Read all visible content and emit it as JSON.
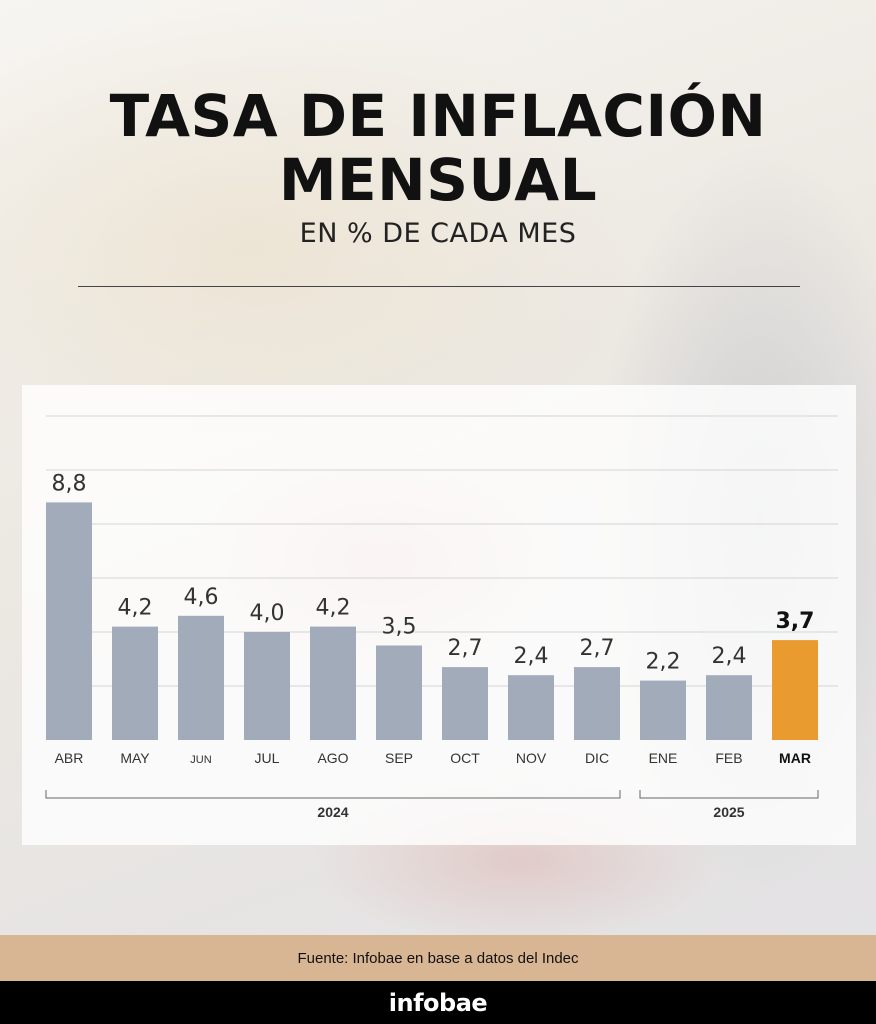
{
  "header": {
    "title_line1": "TASA DE INFLACIÓN",
    "title_line2": "MENSUAL",
    "subtitle": "EN % DE CADA MES"
  },
  "chart_data": {
    "type": "bar",
    "title": "TASA DE INFLACIÓN MENSUAL",
    "subtitle": "EN % DE CADA MES",
    "categories": [
      "ABR",
      "MAY",
      "JUN",
      "JUL",
      "AGO",
      "SEP",
      "OCT",
      "NOV",
      "DIC",
      "ENE",
      "FEB",
      "MAR"
    ],
    "values": [
      8.8,
      4.2,
      4.6,
      4.0,
      4.2,
      3.5,
      2.7,
      2.4,
      2.7,
      2.2,
      2.4,
      3.7
    ],
    "value_labels": [
      "8,8",
      "4,2",
      "4,6",
      "4,0",
      "4,2",
      "3,5",
      "2,7",
      "2,4",
      "2,7",
      "2,2",
      "2,4",
      "3,7"
    ],
    "highlight_index": 11,
    "groups": [
      {
        "label": "2024",
        "from": 0,
        "to": 8
      },
      {
        "label": "2025",
        "from": 9,
        "to": 11
      }
    ],
    "ylim": [
      0,
      12
    ],
    "gridlines": [
      2,
      4,
      6,
      8,
      10,
      12
    ],
    "colors": {
      "bar": "#a1abb9",
      "highlight": "#e99b30",
      "grid": "#d4d4d4",
      "label": "#333333"
    }
  },
  "footer": {
    "source": "Fuente: Infobae en base a datos del Indec",
    "brand": "infobae"
  }
}
